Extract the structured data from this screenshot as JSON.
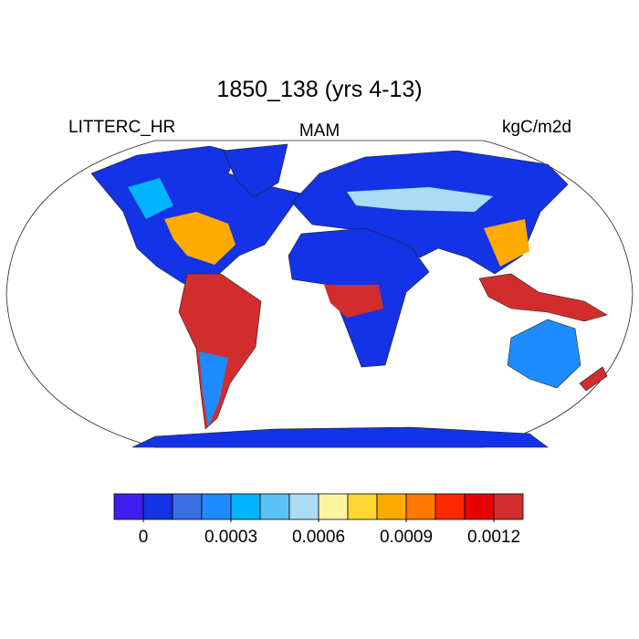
{
  "title": "1850_138 (yrs 4-13)",
  "left_string": "LITTERC_HR",
  "center_string": "MAM",
  "right_string": "kgC/m2d",
  "colorbar": {
    "colors": [
      "#3e1ff0",
      "#1432e6",
      "#3c6ee6",
      "#1e8cff",
      "#00b4ff",
      "#5ac3f5",
      "#aadcf5",
      "#fff5a0",
      "#ffd732",
      "#ffaa00",
      "#ff7800",
      "#ff2800",
      "#e60000",
      "#d22d2d"
    ],
    "lim": [
      -0.0001,
      0.0013
    ],
    "ticks": [
      0,
      0.0003,
      0.0006,
      0.0009,
      0.0012
    ]
  }
}
